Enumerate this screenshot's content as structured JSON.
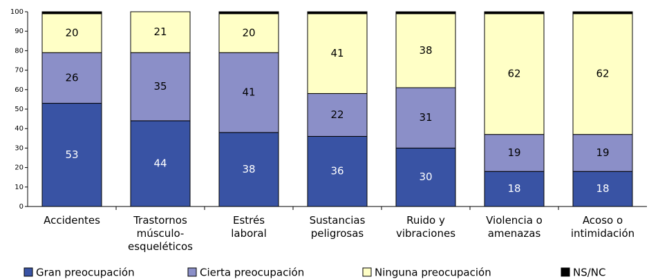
{
  "chart_data": {
    "type": "stacked_bar",
    "categories": [
      "Accidentes",
      "Trastornos\nmúsculo-\nesqueléticos",
      "Estrés\nlaboral",
      "Sustancias\npeligrosas",
      "Ruido y\nvibraciones",
      "Violencia o\namenazas",
      "Acoso o\nintimidación"
    ],
    "series": [
      {
        "name": "Gran preocupación",
        "color": "#3953a4",
        "values": [
          53,
          44,
          38,
          36,
          30,
          18,
          18
        ]
      },
      {
        "name": "Cierta preocupación",
        "color": "#8b8fc8",
        "values": [
          26,
          35,
          41,
          22,
          31,
          19,
          19
        ]
      },
      {
        "name": "Ninguna preocupación",
        "color": "#ffffc6",
        "values": [
          20,
          21,
          20,
          41,
          38,
          62,
          62
        ]
      },
      {
        "name": "NS/NC",
        "color": "#000000",
        "values": [
          1,
          0,
          1,
          1,
          1,
          1,
          1
        ]
      }
    ],
    "ylim": [
      0,
      100
    ],
    "yticks": [
      0,
      10,
      20,
      30,
      40,
      50,
      60,
      70,
      80,
      90,
      100
    ],
    "grid": false,
    "legend": "bottom"
  }
}
